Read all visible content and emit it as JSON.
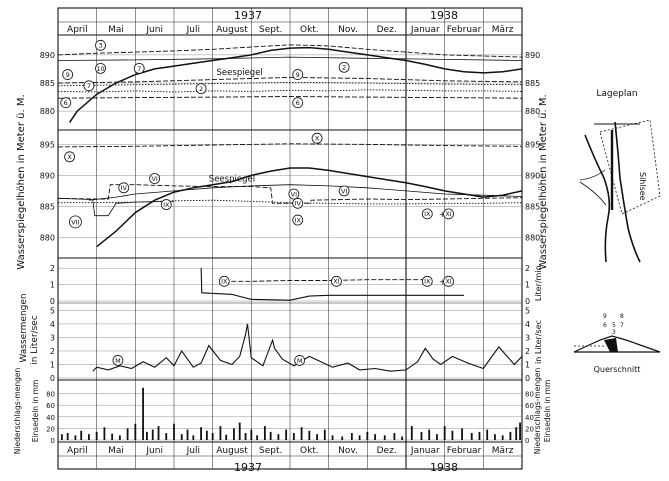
{
  "colors": {
    "ink": "#111111",
    "paper": "#ffffff"
  },
  "chart_data": {
    "type": "line",
    "year_labels": [
      "1937",
      "1938"
    ],
    "months": [
      "April",
      "Mai",
      "Juni",
      "Juli",
      "August",
      "Sept.",
      "Okt.",
      "Nov.",
      "Dez.",
      "Januar",
      "Februar",
      "März"
    ],
    "panels": [
      {
        "id": "levels_top",
        "ylabel": "Wasserspiegelhöhen in Meter ü. M.",
        "ylim": [
          877,
          893
        ],
        "ticks": [
          880,
          885,
          890
        ],
        "series": [
          {
            "name": "Seespiegel",
            "style": "solid",
            "x": [
              0.3,
              0.5,
              1,
              1.5,
              2,
              2.5,
              3,
              3.5,
              4,
              4.5,
              5,
              5.5,
              6,
              6.5,
              7,
              7.5,
              8,
              8.5,
              9,
              9.5,
              10,
              10.5,
              11,
              11.5,
              12
            ],
            "y": [
              878,
              880,
              883,
              885,
              886.5,
              887.5,
              888,
              888.5,
              889,
              889.5,
              890,
              890.8,
              891.2,
              891.3,
              891,
              890.5,
              890,
              889.5,
              889,
              888.3,
              887.5,
              887,
              886.8,
              887,
              887.5
            ]
          },
          {
            "name": "3",
            "style": "dashed",
            "x": [
              0,
              1,
              2,
              3,
              4,
              5,
              6,
              7,
              8,
              9,
              10,
              11,
              12
            ],
            "y": [
              890,
              890.3,
              890.5,
              890.7,
              891,
              891.4,
              891.8,
              891.6,
              891,
              890.5,
              890,
              889.8,
              889.6
            ]
          },
          {
            "name": "10",
            "style": "solid-thin",
            "x": [
              0,
              2,
              4,
              6,
              8,
              10,
              12
            ],
            "y": [
              889,
              889.1,
              889.3,
              889.6,
              889.4,
              889.2,
              889
            ]
          },
          {
            "name": "9",
            "style": "dashed",
            "x": [
              0,
              2,
              4,
              6,
              8,
              10,
              12
            ],
            "y": [
              885,
              885.2,
              885.6,
              886,
              885.8,
              885.4,
              885.2
            ]
          },
          {
            "name": "2",
            "style": "dotted",
            "x": [
              0,
              1,
              2,
              3,
              4,
              5,
              6,
              7,
              8,
              9,
              10,
              11,
              12
            ],
            "y": [
              883.5,
              883.4,
              883.6,
              883.4,
              883.6,
              883.5,
              883.7,
              883.6,
              883.8,
              883.7,
              883.6,
              883.6,
              883.5
            ]
          },
          {
            "name": "7",
            "style": "dotted",
            "x": [
              0,
              2,
              4,
              6,
              8,
              10,
              12
            ],
            "y": [
              884.5,
              884.7,
              884.9,
              885.1,
              885,
              884.8,
              884.7
            ]
          },
          {
            "name": "6",
            "style": "dashed",
            "x": [
              0,
              2,
              4,
              6,
              8,
              10,
              12
            ],
            "y": [
              882.3,
              882.4,
              882.5,
              882.6,
              882.5,
              882.4,
              882.3
            ]
          }
        ],
        "labels": [
          {
            "text": "Seespiegel",
            "x": 4.1,
            "y": 887
          },
          {
            "text": "3",
            "x": 1.1,
            "y": 891.7,
            "circle": true
          },
          {
            "text": "10",
            "x": 1.1,
            "y": 887.6,
            "circle": true
          },
          {
            "text": "7",
            "x": 2.1,
            "y": 887.6,
            "circle": true
          },
          {
            "text": "9",
            "x": 0.25,
            "y": 886.5,
            "circle": true
          },
          {
            "text": "7",
            "x": 0.8,
            "y": 884.5,
            "circle": true
          },
          {
            "text": "2",
            "x": 3.7,
            "y": 884,
            "circle": true
          },
          {
            "text": "6",
            "x": 0.2,
            "y": 881.5,
            "circle": true
          },
          {
            "text": "9",
            "x": 6.2,
            "y": 886.5,
            "circle": true
          },
          {
            "text": "6",
            "x": 6.2,
            "y": 881.5,
            "circle": true
          },
          {
            "text": "2",
            "x": 7.4,
            "y": 887.8,
            "circle": true
          }
        ]
      },
      {
        "id": "levels_bottom",
        "ylabel": "",
        "ylim": [
          877,
          897
        ],
        "ticks": [
          880,
          885,
          890,
          895
        ],
        "series": [
          {
            "name": "Seespiegel",
            "style": "solid",
            "x": [
              1,
              1.5,
              2,
              2.5,
              3,
              3.5,
              4,
              4.5,
              5,
              5.5,
              6,
              6.5,
              7,
              7.5,
              8,
              8.5,
              9,
              9.5,
              10,
              10.5,
              11,
              11.5,
              12
            ],
            "y": [
              878.5,
              881,
              884,
              886,
              887.3,
              888,
              888.5,
              889,
              890,
              890.7,
              891.2,
              891.2,
              890.8,
              890.3,
              889.8,
              889.3,
              888.8,
              888.2,
              887.5,
              887,
              886.5,
              886.8,
              887.5
            ]
          },
          {
            "name": "X",
            "style": "dashed",
            "x": [
              0,
              2,
              4,
              6,
              8,
              10,
              12
            ],
            "y": [
              894.6,
              894.7,
              894.9,
              895.1,
              895,
              894.8,
              894.7
            ]
          },
          {
            "name": "VI",
            "style": "solid-thin",
            "x": [
              0.8,
              1.5,
              2,
              3,
              4,
              5,
              6,
              7,
              8,
              9,
              10,
              11,
              12
            ],
            "y": [
              886,
              886.5,
              887,
              887.5,
              888,
              888.3,
              888.5,
              888.3,
              888,
              887.5,
              887,
              886.8,
              886.6
            ]
          },
          {
            "name": "IV",
            "style": "dashed",
            "x": [
              0,
              1,
              1.3,
              1.35,
              2,
              3,
              4,
              5,
              5.5,
              5.55,
              6,
              6.5,
              6.55,
              8,
              9,
              10,
              11,
              12
            ],
            "y": [
              886.3,
              886.2,
              886.2,
              888.5,
              888.5,
              888.3,
              888.2,
              888.2,
              888,
              885.5,
              885.5,
              885.5,
              886,
              886.2,
              886.1,
              886.2,
              886.3,
              886.4
            ]
          },
          {
            "name": "IX",
            "style": "dotted",
            "x": [
              0,
              1,
              2,
              3,
              4,
              5,
              6,
              7,
              8,
              9,
              10,
              11,
              12
            ],
            "y": [
              885.6,
              885.6,
              885.7,
              885.9,
              886,
              885.8,
              885.6,
              885.5,
              885.4,
              885.4,
              885.5,
              885.5,
              885.6
            ]
          },
          {
            "name": "VII",
            "style": "solid-thin",
            "x": [
              0,
              0.5,
              0.9,
              0.95,
              1.3,
              1.5,
              2,
              3
            ],
            "y": [
              886.3,
              886.2,
              886.1,
              883.5,
              883.5,
              885.5,
              885.7,
              885.8
            ]
          }
        ],
        "labels": [
          {
            "text": "Seespiegel",
            "x": 3.9,
            "y": 889.5
          },
          {
            "text": "X",
            "x": 0.3,
            "y": 893,
            "circle": true
          },
          {
            "text": "X",
            "x": 6.7,
            "y": 896,
            "circle": true
          },
          {
            "text": "VI",
            "x": 2.5,
            "y": 889.5,
            "circle": true
          },
          {
            "text": "VI",
            "x": 6.1,
            "y": 887,
            "circle": true
          },
          {
            "text": "VI",
            "x": 7.4,
            "y": 887.5,
            "circle": true
          },
          {
            "text": "IV",
            "x": 1.7,
            "y": 888,
            "circle": true
          },
          {
            "text": "IV",
            "x": 6.2,
            "y": 885.5,
            "circle": true
          },
          {
            "text": "IX",
            "x": 2.8,
            "y": 885.3,
            "circle": true
          },
          {
            "text": "IX",
            "x": 6.2,
            "y": 882.8,
            "circle": true
          },
          {
            "text": "VII",
            "x": 0.45,
            "y": 882.5,
            "circle": true
          },
          {
            "text": "IX",
            "x": 9.55,
            "y": 883.8,
            "circle": true
          },
          {
            "text": "+",
            "x": 9.85,
            "y": 883.8
          },
          {
            "text": "XI",
            "x": 10.1,
            "y": 883.8,
            "circle": true
          }
        ]
      },
      {
        "id": "flow_small",
        "ylabel": "Liter/min.",
        "ylim": [
          0,
          2.5
        ],
        "ticks": [
          0,
          1,
          2
        ],
        "series": [
          {
            "name": "IX",
            "style": "solid",
            "x": [
              3.7,
              3.72,
              4.1,
              4.5,
              5,
              6,
              6.5,
              7,
              8,
              9,
              10,
              10.5
            ],
            "y": [
              2,
              0.5,
              0.45,
              0.4,
              0.1,
              0.05,
              0.3,
              0.35,
              0.35,
              0.35,
              0.35,
              0.35
            ]
          },
          {
            "name": "XI",
            "style": "dashed",
            "x": [
              4.3,
              5,
              6,
              7,
              8,
              9,
              9.5
            ],
            "y": [
              1.2,
              1.2,
              1.25,
              1.25,
              1.3,
              1.3,
              1.3
            ]
          }
        ],
        "labels": [
          {
            "text": "IX",
            "x": 4.3,
            "y": 1.2,
            "circle": true
          },
          {
            "text": "XI",
            "x": 7.2,
            "y": 1.2,
            "circle": true
          },
          {
            "text": "IX",
            "x": 9.55,
            "y": 1.2,
            "circle": true
          },
          {
            "text": "+",
            "x": 9.85,
            "y": 1.2
          },
          {
            "text": "XI",
            "x": 10.1,
            "y": 1.2,
            "circle": true
          }
        ]
      },
      {
        "id": "flow_main",
        "ylabel": "in Liter/sec",
        "ylim": [
          0,
          5.4
        ],
        "ticks": [
          0,
          1,
          2,
          3,
          4,
          5
        ],
        "series": [
          {
            "name": "M",
            "style": "solid",
            "x": [
              0.9,
              1,
              1.3,
              1.6,
              1.9,
              2.2,
              2.5,
              2.8,
              3.0,
              3.2,
              3.5,
              3.7,
              3.9,
              4.2,
              4.5,
              4.7,
              4.85,
              4.9,
              5.0,
              5.3,
              5.55,
              5.6,
              5.8,
              6.1,
              6.5,
              6.8,
              7.1,
              7.5,
              7.8,
              8.2,
              8.6,
              9.0,
              9.3,
              9.5,
              9.7,
              9.9,
              10.2,
              10.6,
              11.0,
              11.4,
              11.8,
              12
            ],
            "y": [
              0.5,
              0.8,
              0.6,
              0.9,
              0.7,
              1.2,
              0.8,
              1.5,
              0.9,
              2.0,
              0.8,
              1.1,
              2.4,
              1.3,
              1.0,
              1.6,
              3.2,
              4.0,
              1.5,
              0.9,
              2.8,
              2.2,
              1.4,
              0.9,
              1.6,
              1.2,
              0.8,
              1.1,
              0.6,
              0.7,
              0.5,
              0.6,
              1.2,
              2.2,
              1.4,
              1.0,
              1.6,
              1.1,
              0.7,
              2.3,
              1.0,
              1.6
            ]
          }
        ],
        "labels": [
          {
            "text": "M",
            "x": 1.55,
            "y": 1.3,
            "circle": true
          },
          {
            "text": "M",
            "x": 6.25,
            "y": 1.3,
            "circle": true
          }
        ]
      },
      {
        "id": "precip",
        "ylabel": "Einsedeln in mm",
        "ylim": [
          0,
          100
        ],
        "ticks": [
          0,
          20,
          40,
          60,
          80
        ],
        "series": [
          {
            "name": "Niederschlag",
            "style": "bars",
            "x": [
              0.1,
              0.25,
              0.45,
              0.6,
              0.8,
              1.0,
              1.2,
              1.4,
              1.6,
              1.8,
              2.0,
              2.2,
              2.3,
              2.45,
              2.6,
              2.8,
              3.0,
              3.2,
              3.35,
              3.5,
              3.7,
              3.85,
              4.0,
              4.2,
              4.35,
              4.55,
              4.7,
              4.85,
              5.0,
              5.15,
              5.35,
              5.5,
              5.7,
              5.9,
              6.1,
              6.3,
              6.5,
              6.7,
              6.9,
              7.1,
              7.35,
              7.6,
              7.8,
              8.0,
              8.2,
              8.45,
              8.7,
              8.9,
              9.15,
              9.4,
              9.6,
              9.8,
              10.0,
              10.2,
              10.45,
              10.7,
              10.9,
              11.1,
              11.3,
              11.5,
              11.7,
              11.85,
              11.95
            ],
            "y": [
              10,
              12,
              8,
              16,
              10,
              14,
              22,
              11,
              8,
              20,
              28,
              90,
              14,
              18,
              24,
              12,
              28,
              10,
              18,
              8,
              22,
              16,
              12,
              24,
              9,
              20,
              30,
              12,
              18,
              8,
              24,
              14,
              10,
              18,
              12,
              22,
              16,
              10,
              18,
              8,
              6,
              12,
              8,
              14,
              10,
              8,
              12,
              6,
              24,
              14,
              18,
              10,
              24,
              16,
              20,
              12,
              14,
              18,
              10,
              8,
              14,
              22,
              30
            ]
          }
        ],
        "labels": []
      }
    ],
    "side_label_flow": "Wassermengen",
    "side_label_precip": "Niederschlags-mengen"
  },
  "lageplan": {
    "title": "Lageplan",
    "river": "Sihlsee"
  },
  "querschnitt": {
    "title": "Querschnitt",
    "numbers": [
      "9",
      "8",
      "6",
      "5",
      "7",
      "3"
    ]
  }
}
